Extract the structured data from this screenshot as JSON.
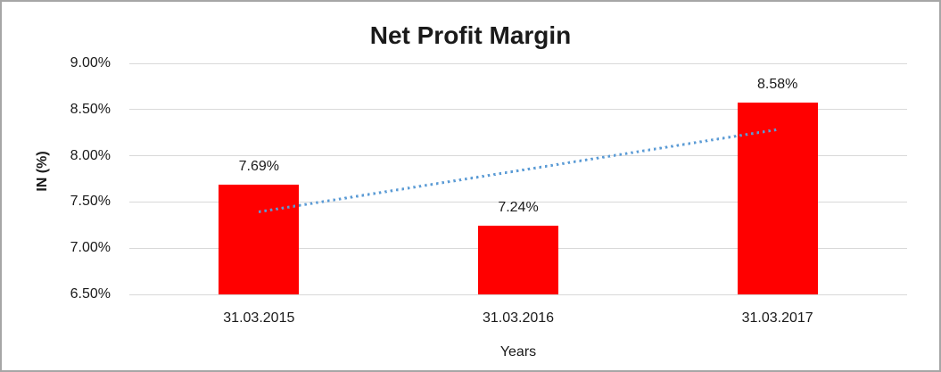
{
  "chart_data": {
    "type": "bar",
    "title": "Net Profit Margin",
    "xlabel": "Years",
    "ylabel": "IN (%)",
    "categories": [
      "31.03.2015",
      "31.03.2016",
      "31.03.2017"
    ],
    "values": [
      7.69,
      7.24,
      8.58
    ],
    "value_labels": [
      "7.69%",
      "7.24%",
      "8.58%"
    ],
    "ylim": [
      6.5,
      9.0
    ],
    "y_tick_step": 0.5,
    "y_tick_labels": [
      "6.50%",
      "7.00%",
      "7.50%",
      "8.00%",
      "8.50%",
      "9.00%"
    ],
    "grid": true,
    "legend": "none",
    "bar_color": "#FF0000",
    "gridline_color": "#d9d9d9",
    "trendline": {
      "type": "linear",
      "style": "dotted",
      "color": "#5B9BD5",
      "start_value": 7.39,
      "end_value": 8.28
    }
  }
}
